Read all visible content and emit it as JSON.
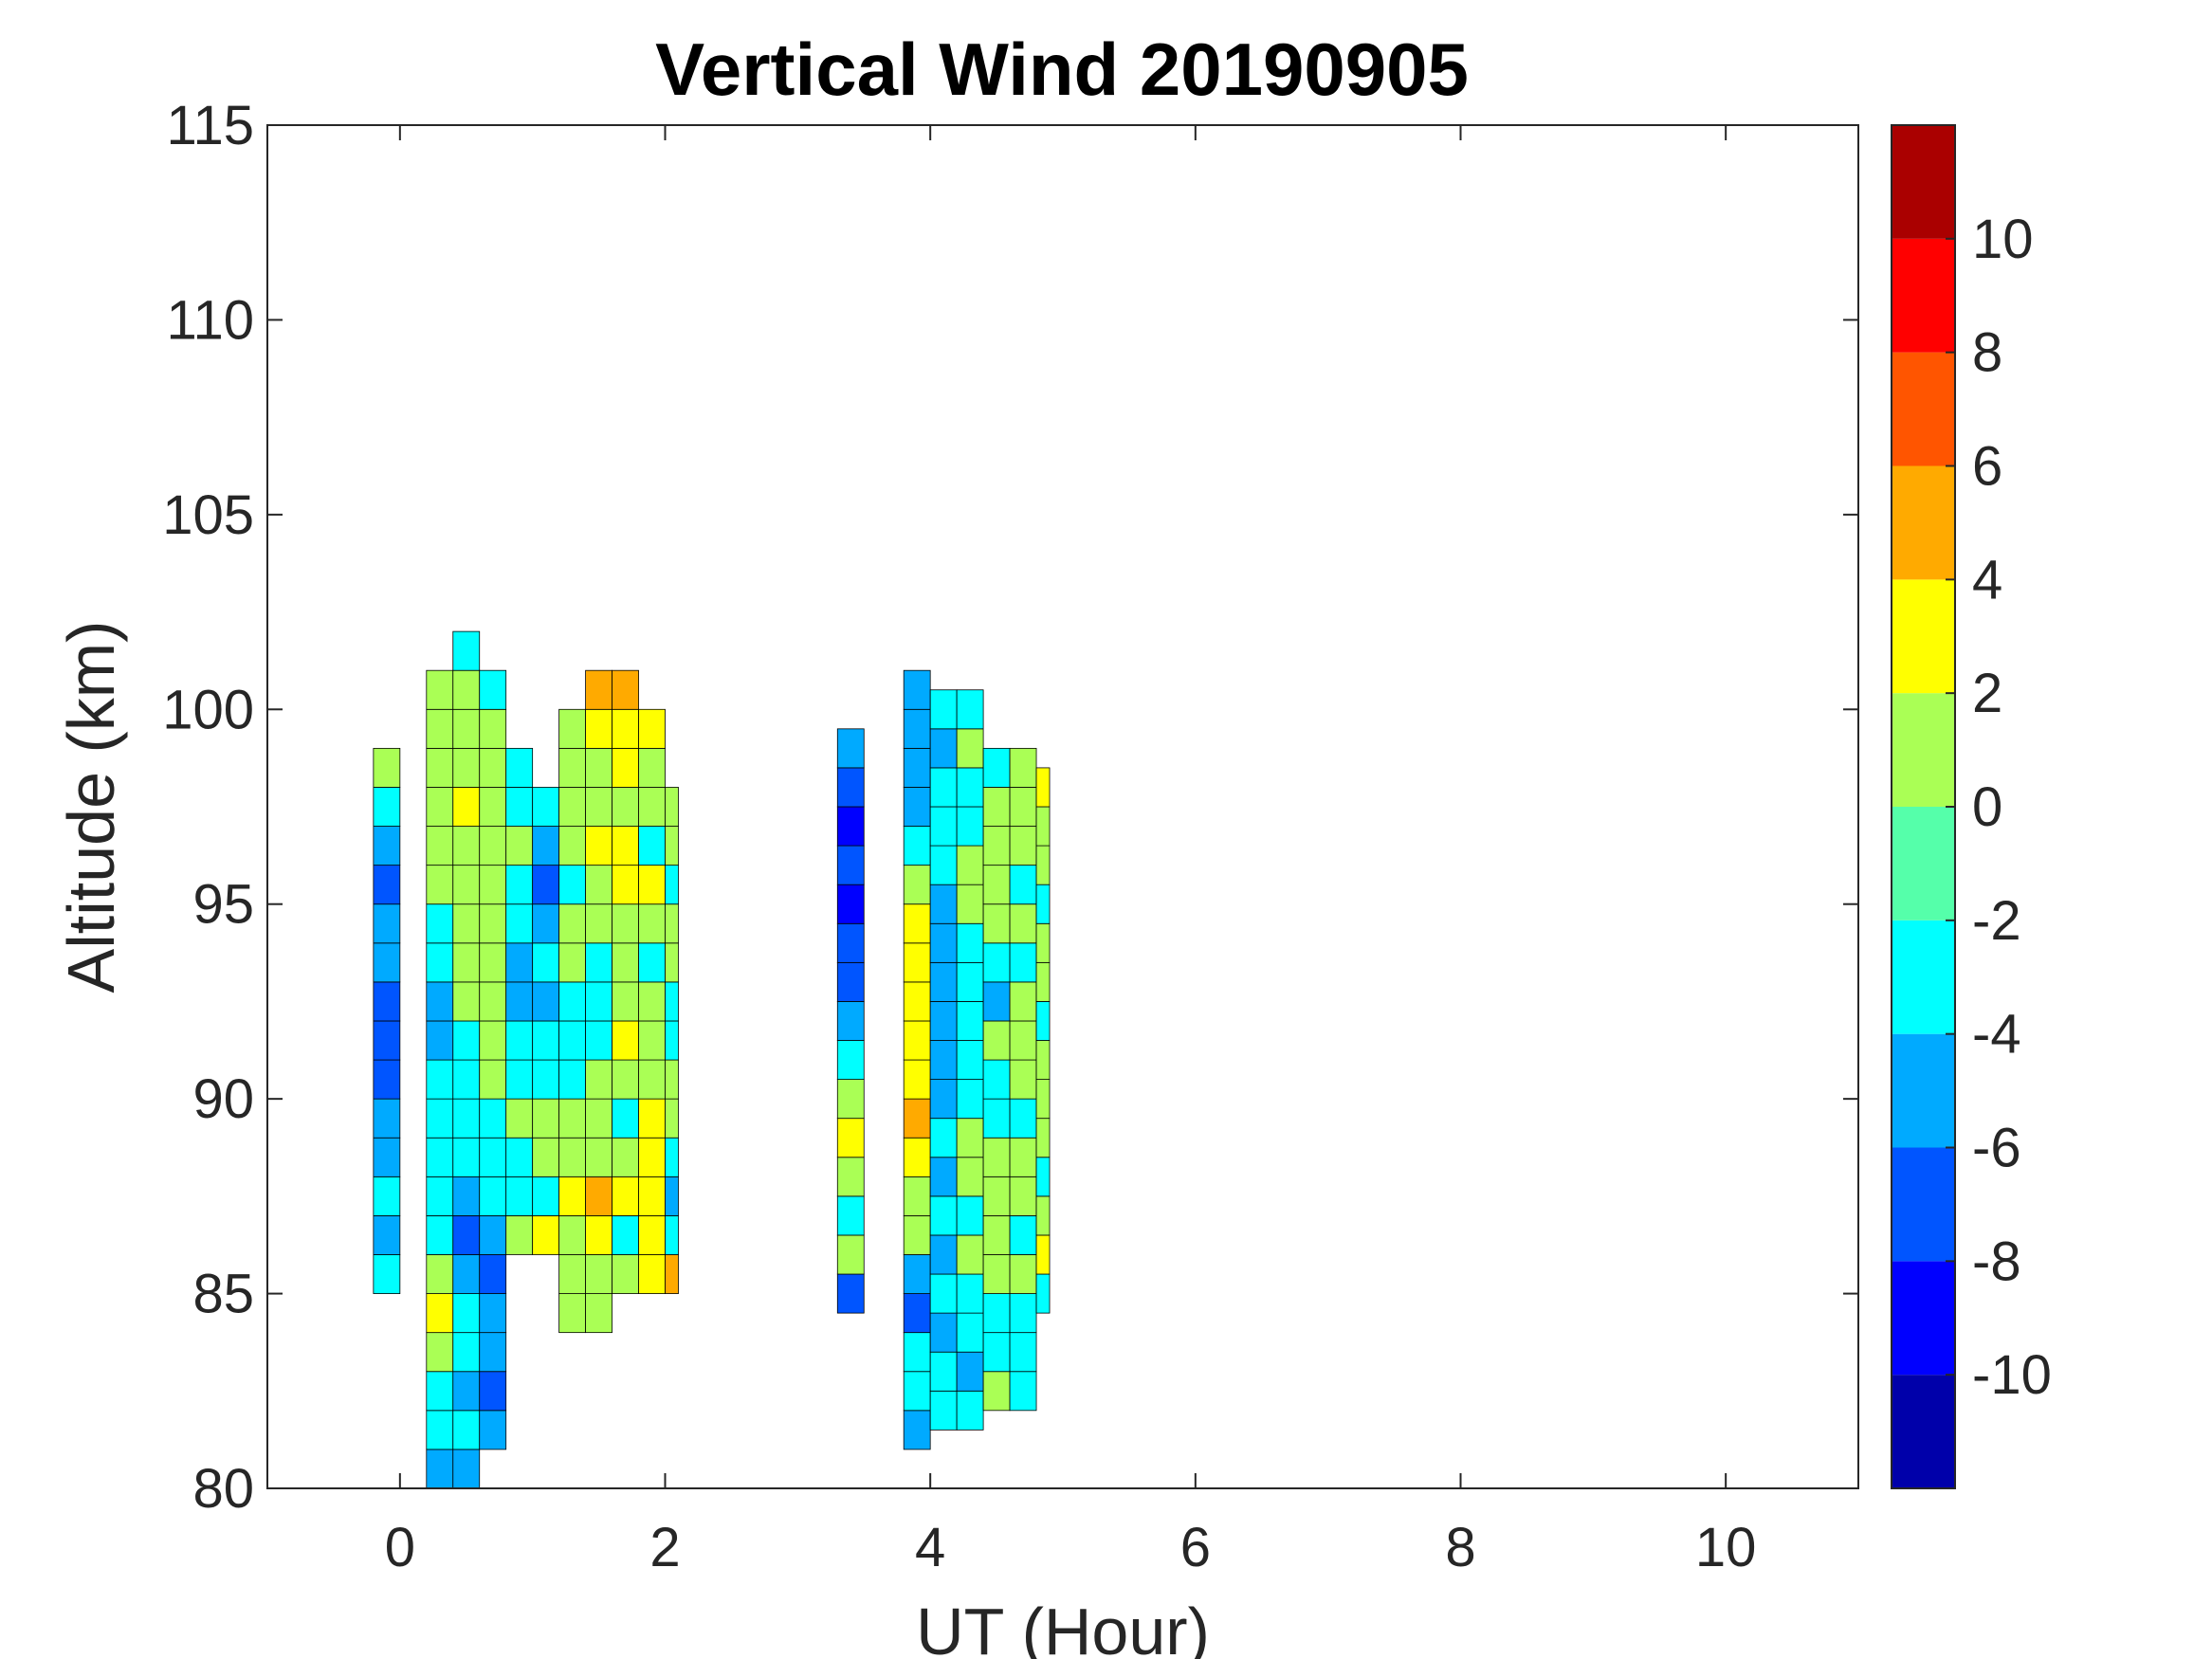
{
  "chart_data": {
    "type": "contour",
    "title": "Vertical Wind 20190905",
    "xlabel": "UT (Hour)",
    "ylabel": "Altitude (km)",
    "xlim": [
      -1,
      11
    ],
    "ylim": [
      80,
      115
    ],
    "xticks": [
      0,
      2,
      4,
      6,
      8,
      10
    ],
    "xtick_labels": [
      "0",
      "2",
      "4",
      "6",
      "8",
      "10"
    ],
    "yticks": [
      80,
      85,
      90,
      95,
      100,
      105,
      110,
      115
    ],
    "ytick_labels": [
      "80",
      "85",
      "90",
      "95",
      "100",
      "105",
      "110",
      "115"
    ],
    "grid": false,
    "colorbar": {
      "levels": [
        -12,
        -10,
        -8,
        -6,
        -4,
        -2,
        0,
        2,
        4,
        6,
        8,
        10,
        12
      ],
      "colors": [
        "#0000AA",
        "#0000FF",
        "#0055FF",
        "#00AAFF",
        "#00FFFF",
        "#55FFAA",
        "#AAFF55",
        "#FFFF00",
        "#FFAA00",
        "#FF5500",
        "#FF0000",
        "#AA0000"
      ],
      "ticks": [
        -10,
        -8,
        -6,
        -4,
        -2,
        0,
        2,
        4,
        6,
        8,
        10
      ],
      "tick_labels": [
        "-10",
        "-8",
        "-6",
        "-4",
        "-2",
        "0",
        "2",
        "4",
        "6",
        "8",
        "10"
      ],
      "location": "right"
    },
    "columns": [
      {
        "x": [
          -0.2,
          0.0
        ],
        "y0": 85,
        "dy": 1,
        "v": [
          -3,
          -5,
          -3,
          -5,
          -5,
          -7,
          -7,
          -7,
          -5,
          -5,
          -7,
          -5,
          -3,
          1
        ]
      },
      {
        "x": [
          0.2,
          0.4
        ],
        "y0": 80,
        "dy": 1,
        "v": [
          -5,
          -3,
          -3,
          1,
          3,
          1,
          -3,
          -3,
          -3,
          -3,
          -3,
          -5,
          -5,
          -3,
          -3,
          1,
          1,
          1,
          1,
          1,
          1
        ]
      },
      {
        "x": [
          0.4,
          0.6
        ],
        "y0": 80,
        "dy": 1,
        "v": [
          -5,
          -3,
          -5,
          -3,
          -3,
          -5,
          -7,
          -5,
          -3,
          -3,
          -3,
          -3,
          1,
          1,
          1,
          1,
          1,
          3,
          1,
          1,
          1,
          -3
        ]
      },
      {
        "x": [
          0.6,
          0.8
        ],
        "y0": 81,
        "dy": 1,
        "v": [
          -5,
          -7,
          -5,
          -5,
          -7,
          -5,
          -3,
          -3,
          -3,
          1,
          1,
          1,
          1,
          1,
          1,
          1,
          1,
          1,
          1,
          -3
        ]
      },
      {
        "x": [
          0.8,
          1.0
        ],
        "y0": 86,
        "dy": 1,
        "v": [
          1,
          -3,
          -3,
          1,
          -3,
          -3,
          -5,
          -5,
          -3,
          -3,
          1,
          -3,
          -3
        ]
      },
      {
        "x": [
          1.0,
          1.2
        ],
        "y0": 86,
        "dy": 1,
        "v": [
          3,
          -3,
          1,
          1,
          -3,
          -3,
          -5,
          -3,
          -5,
          -7,
          -5,
          -3
        ]
      },
      {
        "x": [
          1.2,
          1.4
        ],
        "y0": 84,
        "dy": 1,
        "v": [
          1,
          1,
          1,
          3,
          1,
          1,
          -3,
          -3,
          -3,
          1,
          1,
          -3,
          1,
          1,
          1,
          1
        ]
      },
      {
        "x": [
          1.4,
          1.6
        ],
        "y0": 84,
        "dy": 1,
        "v": [
          1,
          1,
          3,
          5,
          1,
          1,
          1,
          -3,
          -3,
          -3,
          1,
          1,
          3,
          1,
          1,
          3,
          5
        ]
      },
      {
        "x": [
          1.6,
          1.8
        ],
        "y0": 85,
        "dy": 1,
        "v": [
          1,
          -3,
          3,
          1,
          -3,
          1,
          3,
          1,
          1,
          1,
          3,
          3,
          1,
          3,
          3,
          5
        ]
      },
      {
        "x": [
          1.8,
          2.0
        ],
        "y0": 85,
        "dy": 1,
        "v": [
          3,
          3,
          3,
          3,
          3,
          1,
          1,
          1,
          -3,
          1,
          3,
          -3,
          1,
          1,
          3
        ]
      },
      {
        "x": [
          2.0,
          2.1
        ],
        "y0": 85,
        "dy": 1,
        "v": [
          5,
          -3,
          -5,
          -3,
          1,
          1,
          -3,
          -3,
          1,
          1,
          -3,
          1,
          1
        ]
      },
      {
        "x": [
          3.3,
          3.5
        ],
        "y0": 84.5,
        "dy": 1,
        "v": [
          -7,
          1,
          -3,
          1,
          3,
          1,
          -3,
          -5,
          -7,
          -7,
          -9,
          -7,
          -9,
          -7,
          -5
        ]
      },
      {
        "x": [
          3.8,
          4.0
        ],
        "y0": 81,
        "dy": 1,
        "v": [
          -5,
          -3,
          -3,
          -7,
          -5,
          1,
          1,
          3,
          5,
          3,
          3,
          3,
          3,
          3,
          1,
          -3,
          -5,
          -5,
          -5,
          -5
        ]
      },
      {
        "x": [
          4.0,
          4.2
        ],
        "y0": 81.5,
        "dy": 1,
        "v": [
          -3,
          -3,
          -5,
          -3,
          -5,
          -3,
          -5,
          -3,
          -5,
          -5,
          -5,
          -5,
          -5,
          -5,
          -3,
          -3,
          -3,
          -5,
          -3
        ]
      },
      {
        "x": [
          4.2,
          4.4
        ],
        "y0": 81.5,
        "dy": 1,
        "v": [
          -3,
          -5,
          -3,
          -3,
          1,
          -3,
          1,
          1,
          -3,
          -3,
          -3,
          -3,
          -3,
          1,
          1,
          -3,
          -3,
          1,
          -3
        ]
      },
      {
        "x": [
          4.4,
          4.6
        ],
        "y0": 82,
        "dy": 1,
        "v": [
          1,
          -3,
          -3,
          1,
          1,
          1,
          1,
          -3,
          -3,
          1,
          -5,
          -3,
          1,
          1,
          1,
          1,
          -3
        ]
      },
      {
        "x": [
          4.6,
          4.8
        ],
        "y0": 82,
        "dy": 1,
        "v": [
          -3,
          -3,
          -3,
          1,
          -3,
          1,
          1,
          -3,
          1,
          1,
          1,
          -3,
          1,
          -3,
          1,
          1,
          1
        ]
      },
      {
        "x": [
          4.8,
          4.9
        ],
        "y0": 84.5,
        "dy": 1,
        "v": [
          -3,
          3,
          1,
          -3,
          1,
          1,
          1,
          -3,
          1,
          1,
          -3,
          1,
          1,
          3
        ]
      }
    ]
  }
}
